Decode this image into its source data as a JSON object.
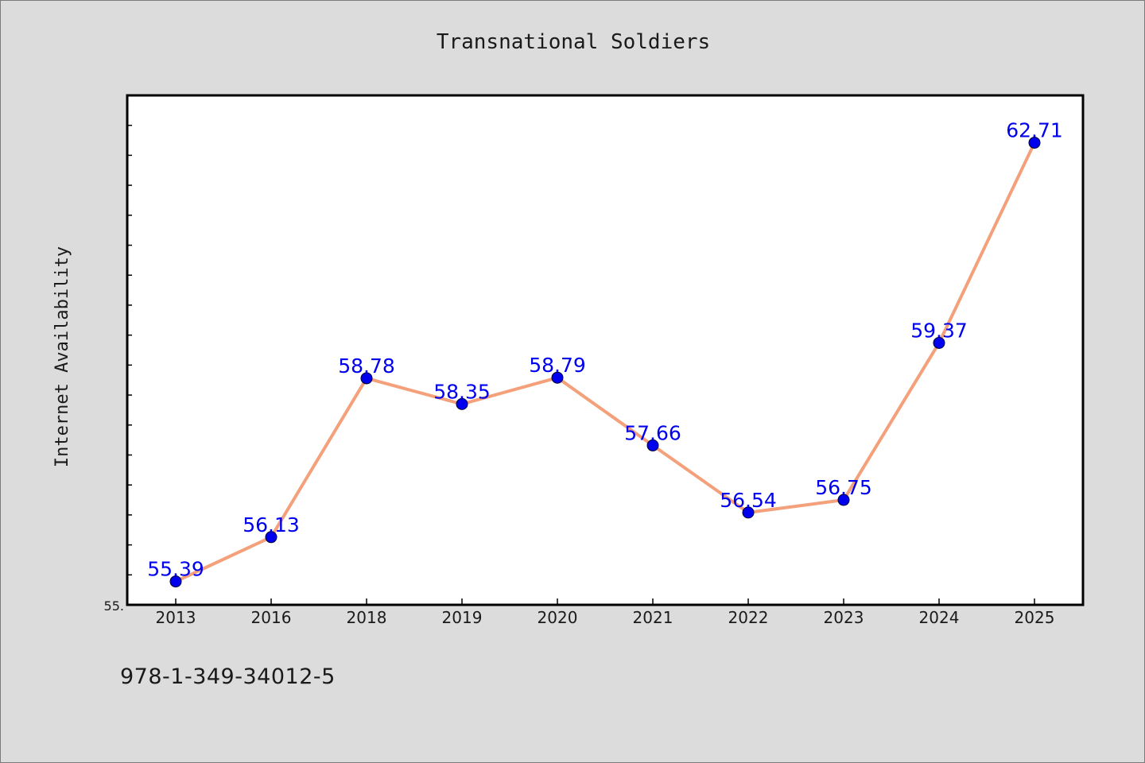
{
  "chart_data": {
    "type": "line",
    "title": "Transnational Soldiers",
    "xlabel": "",
    "ylabel": "Internet Availability",
    "categories": [
      "2013",
      "2016",
      "2018",
      "2019",
      "2020",
      "2021",
      "2022",
      "2023",
      "2024",
      "2025"
    ],
    "series": [
      {
        "values": [
          55.39,
          56.13,
          58.78,
          58.35,
          58.79,
          57.66,
          56.54,
          56.75,
          59.37,
          62.71
        ],
        "line_color": "#f4a07a",
        "marker_color": "#0000ee"
      }
    ],
    "data_labels": [
      "55.39",
      "56.13",
      "58.78",
      "58.35",
      "58.79",
      "57.66",
      "56.54",
      "56.75",
      "59.37",
      "62.71"
    ],
    "ylim": [
      55.0,
      63.5
    ],
    "y_tick_label": "55.",
    "grid": false,
    "legend": "none",
    "label_color": "#0000ee"
  },
  "footer": {
    "isbn": "978-1-349-34012-5"
  }
}
